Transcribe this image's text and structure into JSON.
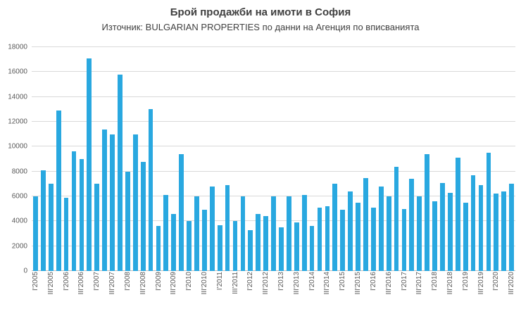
{
  "title": "Брой продажби на имоти в София",
  "subtitle": "Източник: BULGARIAN PROPERTIES по данни на Агенция по вписванията",
  "colors": {
    "bar": "#29a8e0",
    "grid": "#d9d9d9",
    "axis": "#bfbfbf",
    "title_text": "#3f3f3f",
    "tick_text": "#595959",
    "background": "#ffffff"
  },
  "chart_data": {
    "type": "bar",
    "title": "Брой продажби на имоти в София",
    "subtitle": "Източник: BULGARIAN PROPERTIES по данни на Агенция по вписванията",
    "xlabel": "",
    "ylabel": "",
    "ylim": [
      0,
      18000
    ],
    "ytick_step": 2000,
    "grid": true,
    "legend": "none",
    "tick_label_every": 2,
    "categories": [
      "I'2005",
      "II'2005",
      "III'2005",
      "IV'2005",
      "I'2006",
      "II'2006",
      "III'2006",
      "IV'2006",
      "I'2007",
      "II'2007",
      "III'2007",
      "IV'2007",
      "I'2008",
      "II'2008",
      "III'2008",
      "IV'2008",
      "I'2009",
      "II'2009",
      "III'2009",
      "IV'2009",
      "I'2010",
      "II'2010",
      "III'2010",
      "IV'2010",
      "I'2011",
      "II'2011",
      "III'2011",
      "IV'2011",
      "I'2012",
      "II'2012",
      "III'2012",
      "IV'2012",
      "I'2013",
      "II'2013",
      "III'2013",
      "IV'2013",
      "I'2014",
      "II'2014",
      "III'2014",
      "IV'2014",
      "I'2015",
      "II'2015",
      "III'2015",
      "IV'2015",
      "I'2016",
      "II'2016",
      "III'2016",
      "IV'2016",
      "I'2017",
      "II'2017",
      "III'2017",
      "IV'2017",
      "I'2018",
      "II'2018",
      "III'2018",
      "IV'2018",
      "I'2019",
      "II'2019",
      "III'2019",
      "IV'2019",
      "I'2020",
      "II'2020",
      "III'2020"
    ],
    "values": [
      6000,
      8100,
      7000,
      12900,
      5900,
      9600,
      9000,
      17100,
      7000,
      11400,
      11000,
      15800,
      8000,
      11000,
      8800,
      13000,
      3600,
      6100,
      4600,
      9400,
      4000,
      6000,
      4900,
      6800,
      3700,
      6900,
      4000,
      6000,
      3300,
      4600,
      4400,
      6000,
      3500,
      6000,
      3900,
      6100,
      3600,
      5100,
      5200,
      7000,
      4900,
      6400,
      5500,
      7500,
      5100,
      6800,
      6000,
      8400,
      5000,
      7400,
      6000,
      9400,
      5600,
      7100,
      6300,
      9100,
      5500,
      7700,
      6900,
      9500,
      6200,
      6400,
      7000
    ]
  }
}
